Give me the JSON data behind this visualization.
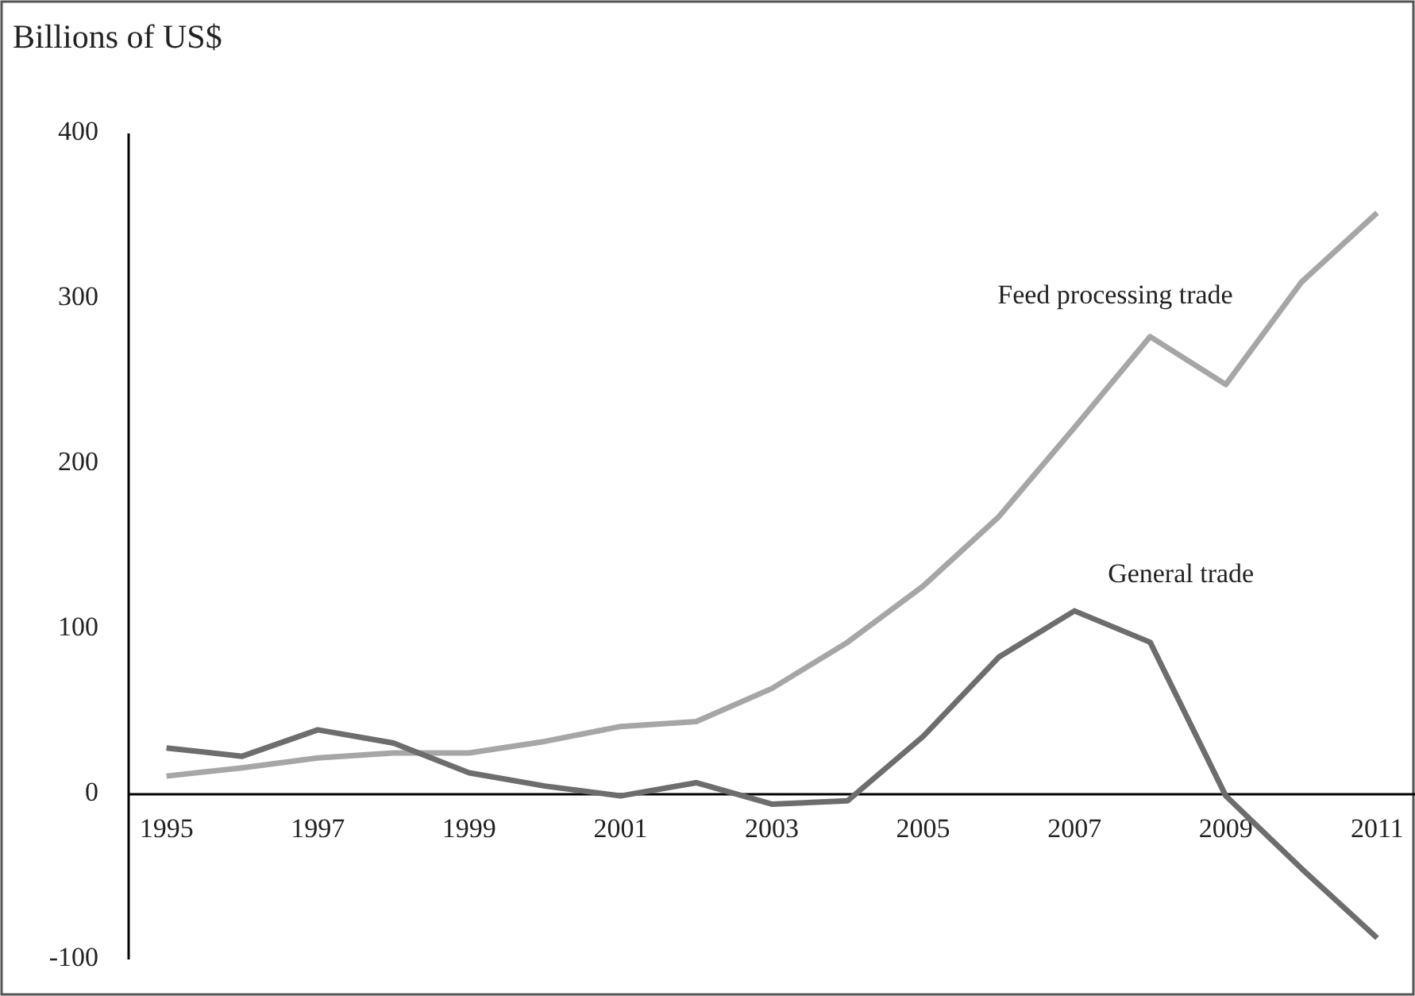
{
  "chart_data": {
    "type": "line",
    "title": "Billions of US$",
    "x": [
      1995,
      1996,
      1997,
      1998,
      1999,
      2000,
      2001,
      2002,
      2003,
      2004,
      2005,
      2006,
      2007,
      2008,
      2009,
      2010,
      2011
    ],
    "series": [
      {
        "name": "Feed processing trade",
        "color": "#a6a6a6",
        "values": [
          11,
          16,
          22,
          25,
          25,
          32,
          41,
          44,
          64,
          92,
          126,
          168,
          222,
          277,
          248,
          310,
          352
        ]
      },
      {
        "name": "General trade",
        "color": "#6d6d6d",
        "values": [
          28,
          23,
          39,
          31,
          13,
          5,
          -1,
          7,
          -6,
          -4,
          35,
          83,
          111,
          92,
          -1,
          -45,
          -87
        ]
      }
    ],
    "xlim": [
      1994.5,
      2011.5
    ],
    "xticks": [
      1995,
      1997,
      1999,
      2001,
      2003,
      2005,
      2007,
      2009,
      2011
    ],
    "ylim": [
      -100,
      400
    ],
    "yticks": [
      -100,
      0,
      100,
      200,
      300,
      400
    ],
    "grid": false,
    "marker": "none",
    "line_style": "solid"
  }
}
